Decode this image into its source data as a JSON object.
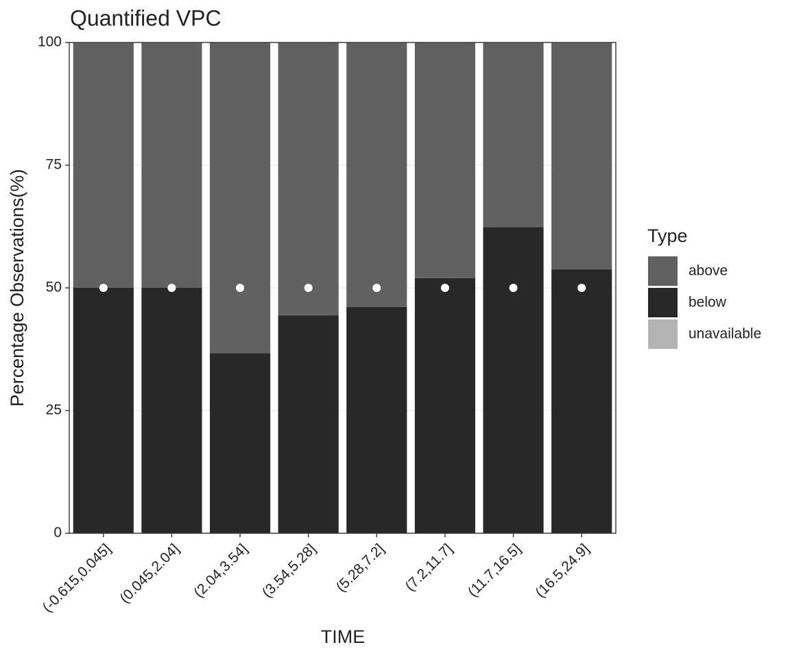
{
  "chart_data": {
    "type": "bar",
    "stacked": true,
    "title": "Quantified VPC",
    "x_label": "TIME",
    "y_label": "Percentage Observations(%)",
    "categories": [
      "(-0.615,0.045]",
      "(0.045,2.04]",
      "(2.04,3.54]",
      "(3.54,5.28]",
      "(5.28,7.2]",
      "(7.2,11.7]",
      "(11.7,16.5]",
      "(16.5,24.9]"
    ],
    "series": [
      {
        "name": "above",
        "color": "#616161",
        "values": [
          50,
          50,
          63.3,
          55.6,
          53.9,
          48,
          37.6,
          46.2
        ]
      },
      {
        "name": "below",
        "color": "#282828",
        "values": [
          50,
          50,
          36.7,
          44.4,
          46.1,
          52,
          62.4,
          53.8
        ]
      },
      {
        "name": "unavailable",
        "color": "#b3b3b3",
        "values": [
          0,
          0,
          0,
          0,
          0,
          0,
          0,
          0
        ]
      }
    ],
    "points": {
      "color": "#ffffff",
      "values": [
        50,
        50,
        50,
        50,
        50,
        50,
        50,
        50
      ]
    },
    "legend_title": "Type",
    "ylim": [
      0,
      100
    ],
    "yticks": [
      0,
      25,
      50,
      75,
      100
    ],
    "grid": true
  }
}
